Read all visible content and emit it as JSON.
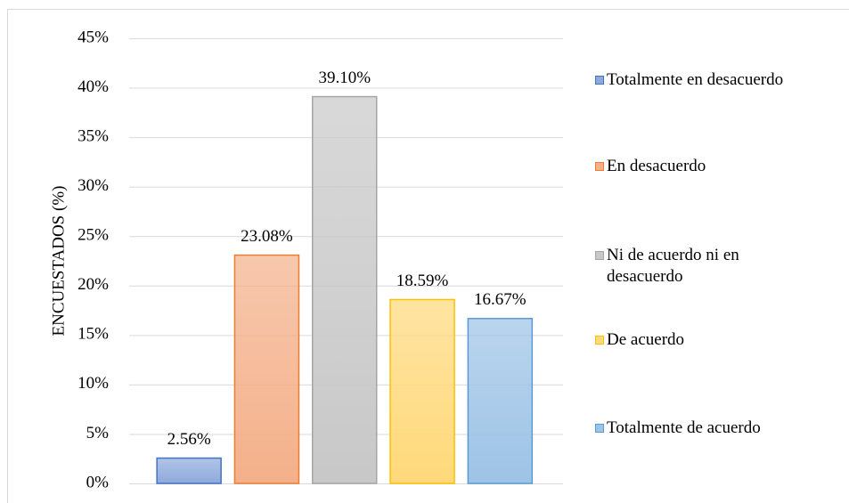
{
  "chart_data": {
    "type": "bar",
    "y_label": "ENCUESTADOS (%)",
    "categories": [
      "Totalmente en desacuerdo",
      "En desacuerdo",
      "Ni de acuerdo ni en desacuerdo",
      "De acuerdo",
      "Totalmente de acuerdo"
    ],
    "values": [
      2.56,
      23.08,
      39.1,
      18.59,
      16.67
    ],
    "value_labels": [
      "2.56%",
      "23.08%",
      "39.10%",
      "18.59%",
      "16.67%"
    ],
    "colors": [
      "#8eaadb",
      "#f4b08a",
      "#c8c8c8",
      "#ffd97a",
      "#9dc3e6"
    ],
    "border_colors": [
      "#4472c4",
      "#ed7d31",
      "#a5a5a5",
      "#ffc000",
      "#5b9bd5"
    ],
    "ylim": [
      0,
      45
    ],
    "yticks": [
      {
        "value": 0,
        "label": "0%"
      },
      {
        "value": 5,
        "label": "5%"
      },
      {
        "value": 10,
        "label": "10%"
      },
      {
        "value": 15,
        "label": "15%"
      },
      {
        "value": 20,
        "label": "20%"
      },
      {
        "value": 25,
        "label": "25%"
      },
      {
        "value": 30,
        "label": "30%"
      },
      {
        "value": 35,
        "label": "35%"
      },
      {
        "value": 40,
        "label": "40%"
      },
      {
        "value": 45,
        "label": "45%"
      }
    ],
    "grid": true,
    "legend": "right"
  }
}
